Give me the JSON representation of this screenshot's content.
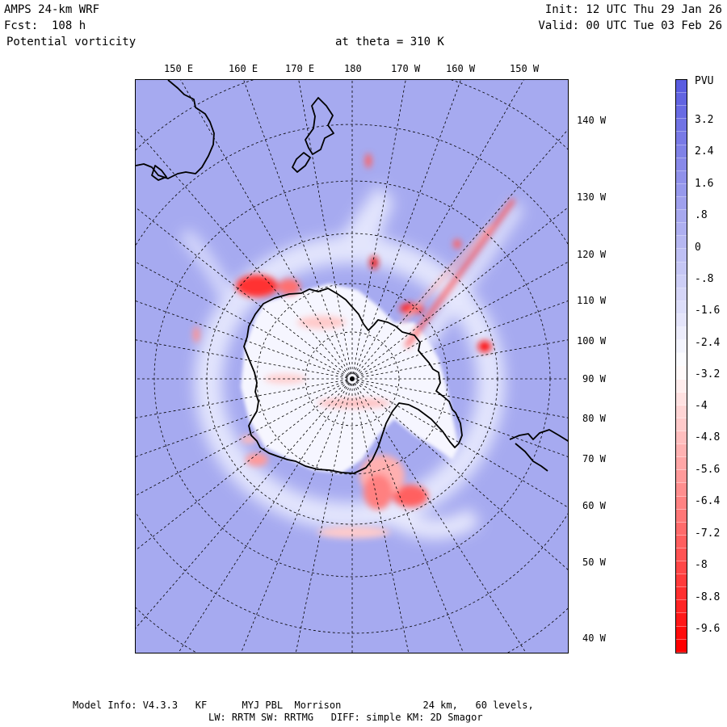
{
  "header": {
    "model": "AMPS 24-km WRF",
    "forecast": "Fcst:  108 h",
    "field": "Potential vorticity",
    "level": "at theta = 310 K",
    "init": "Init: 12 UTC Thu 29 Jan 26",
    "valid": "Valid: 00 UTC Tue 03 Feb 26"
  },
  "top_lon_labels": [
    "150 E",
    "160 E",
    "170 E",
    "180",
    "170 W",
    "160 W",
    "150 W"
  ],
  "right_lon_labels": [
    "140 W",
    "130 W",
    "120 W",
    "110 W",
    "100 W",
    "90 W",
    "80 W",
    "70 W",
    "60 W",
    "50 W",
    "40 W"
  ],
  "colorbar": {
    "unit": "PVU",
    "labels": [
      "3.2",
      "2.4",
      "1.6",
      ".8",
      "0",
      "-.8",
      "-1.6",
      "-2.4",
      "-3.2",
      "-4",
      "-4.8",
      "-5.6",
      "-6.4",
      "-7.2",
      "-8",
      "-8.8",
      "-9.6"
    ],
    "colors": {
      "high": "#5a5ce0",
      "mid": "#ffffff",
      "low": "#ff0000"
    }
  },
  "map": {
    "ocean_color": "#a6aaf0",
    "coast_color": "#000000"
  },
  "footer": {
    "line1": "Model Info: V4.3.3   KF      MYJ PBL  Morrison              24 km,   60 levels,",
    "line2": "LW: RRTM SW: RRTMG   DIFF: simple KM: 2D Smagor"
  }
}
